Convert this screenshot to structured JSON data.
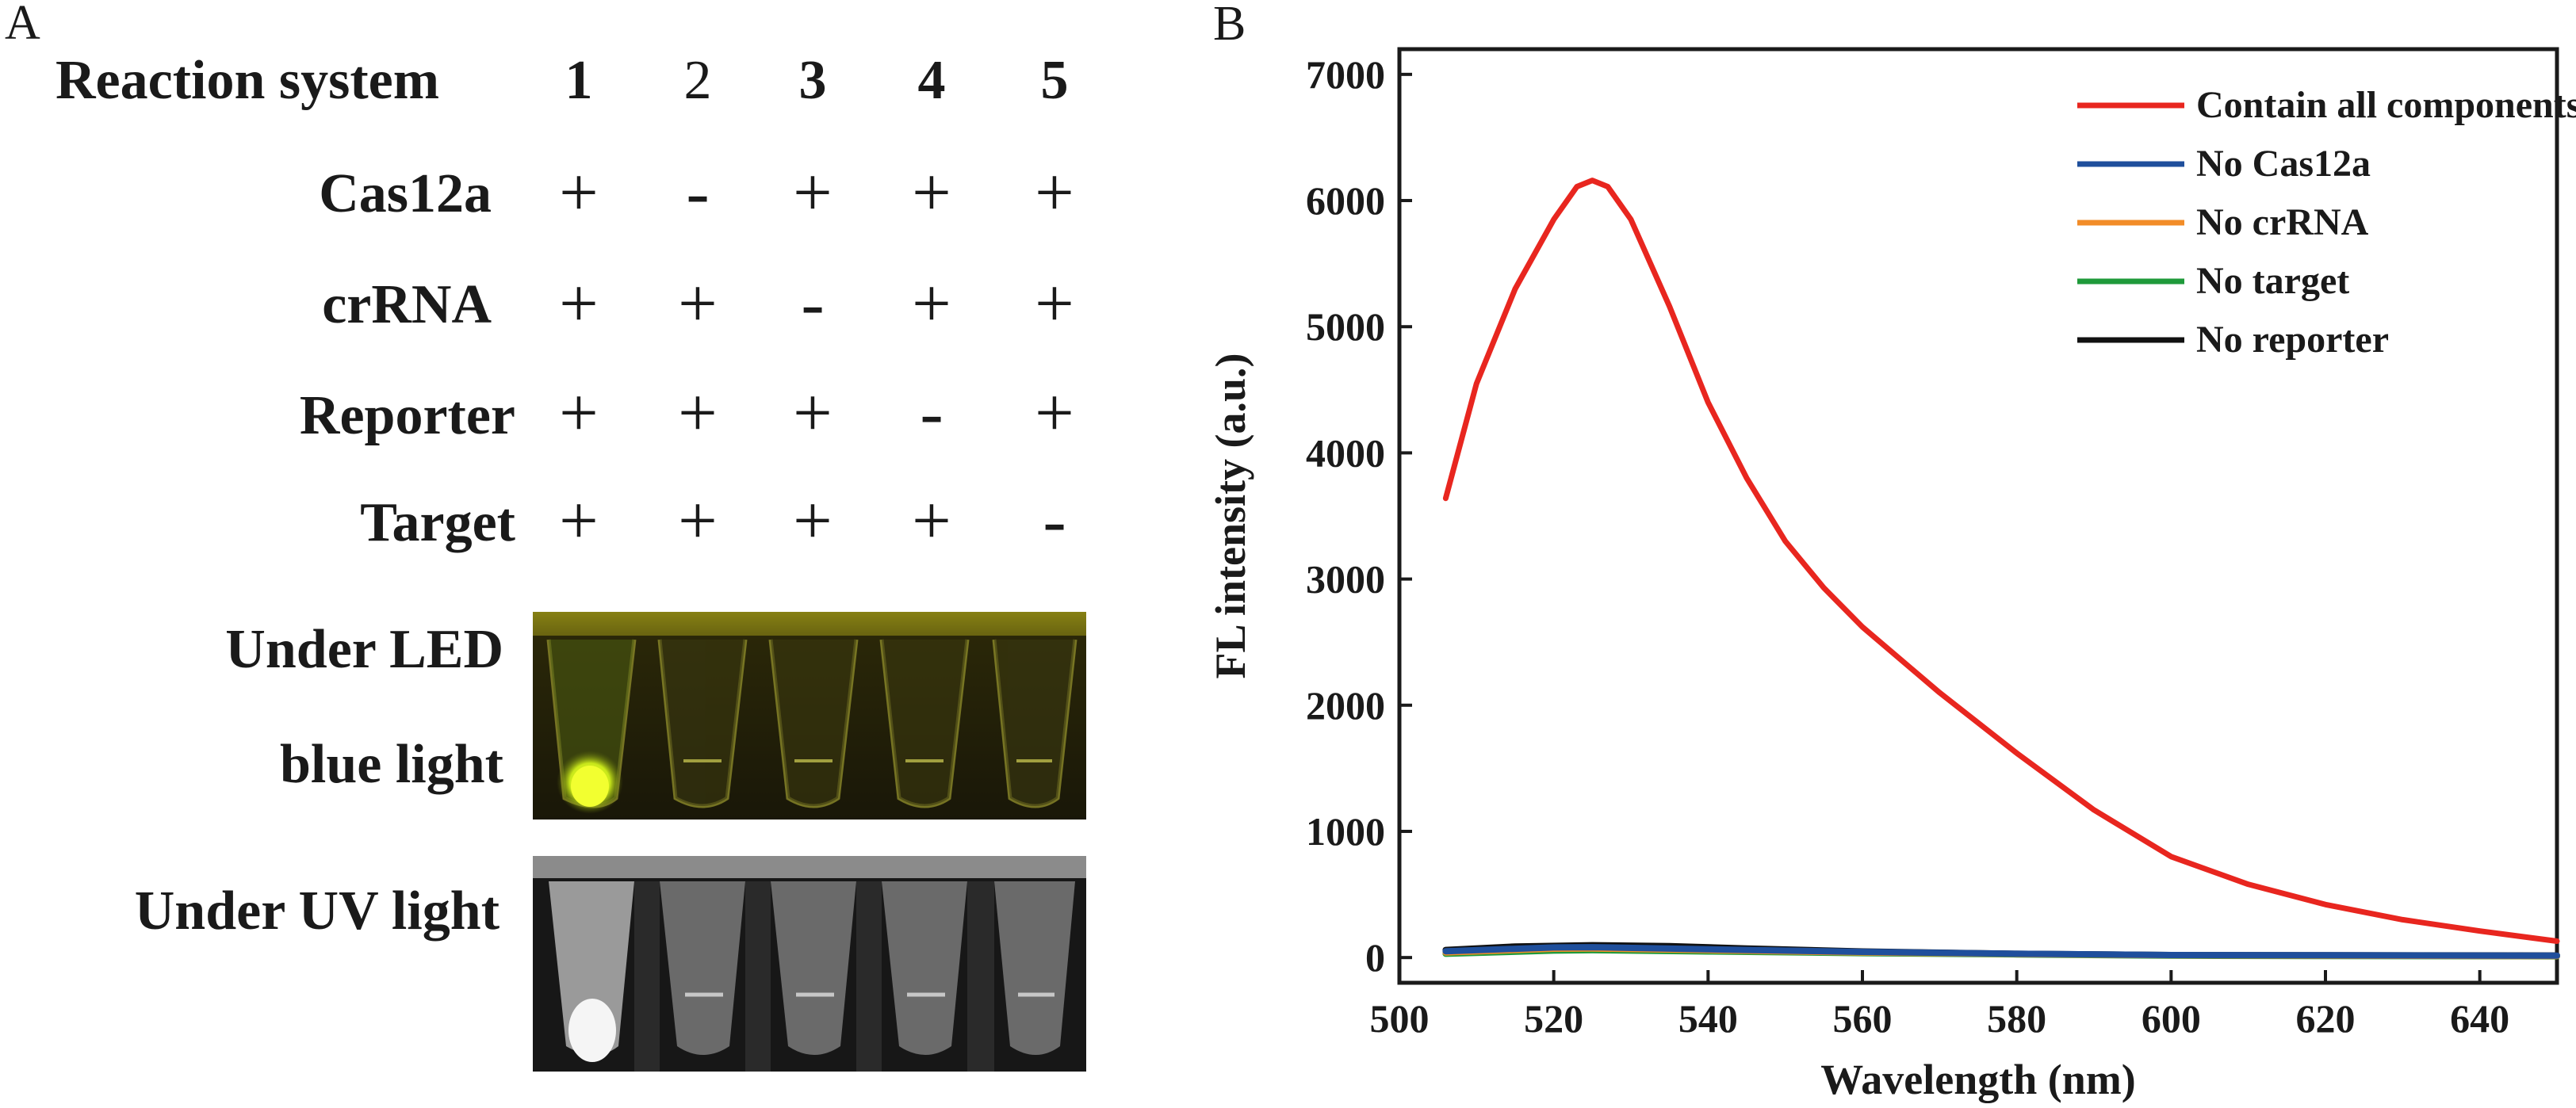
{
  "panel_a": {
    "letter": "A",
    "header_label": "Reaction system",
    "columns": [
      "1",
      "2",
      "3",
      "4",
      "5"
    ],
    "rows": [
      {
        "label": "Cas12a",
        "signs": [
          "+",
          "-",
          "+",
          "+",
          "+"
        ]
      },
      {
        "label": "crRNA",
        "signs": [
          "+",
          "+",
          "-",
          "+",
          "+"
        ]
      },
      {
        "label": "Reporter",
        "signs": [
          "+",
          "+",
          "+",
          "-",
          "+"
        ]
      },
      {
        "label": "Target",
        "signs": [
          "+",
          "+",
          "+",
          "+",
          "-"
        ]
      }
    ],
    "led_label_line1": "Under LED",
    "led_label_line2": "blue light",
    "uv_label": "Under UV light"
  },
  "chart_data": {
    "panel_letter": "B",
    "type": "line",
    "title": "",
    "xlabel": "Wavelength (nm)",
    "ylabel": "FL intensity (a.u.)",
    "xlim": [
      500,
      650
    ],
    "ylim": [
      -200,
      7200
    ],
    "xticks": [
      500,
      520,
      540,
      560,
      580,
      600,
      620,
      640
    ],
    "yticks": [
      0,
      1000,
      2000,
      3000,
      4000,
      5000,
      6000,
      7000
    ],
    "grid": false,
    "legend_position": "top-right",
    "series": [
      {
        "name": "Contain all components",
        "color": "#e8261f",
        "x": [
          506,
          510,
          515,
          520,
          523,
          525,
          527,
          530,
          535,
          540,
          545,
          550,
          555,
          560,
          570,
          580,
          590,
          600,
          610,
          620,
          630,
          640,
          650
        ],
        "y": [
          3640,
          4550,
          5300,
          5850,
          6110,
          6160,
          6110,
          5850,
          5160,
          4400,
          3800,
          3300,
          2930,
          2620,
          2100,
          1620,
          1170,
          800,
          580,
          420,
          300,
          210,
          130
        ]
      },
      {
        "name": "No Cas12a",
        "color": "#1f4f9c",
        "x": [
          506,
          520,
          525,
          540,
          560,
          580,
          600,
          620,
          650
        ],
        "y": [
          50,
          80,
          82,
          65,
          45,
          30,
          20,
          18,
          15
        ]
      },
      {
        "name": "No crRNA",
        "color": "#f28c28",
        "x": [
          506,
          520,
          525,
          540,
          560,
          580,
          600,
          620,
          650
        ],
        "y": [
          40,
          70,
          72,
          58,
          40,
          28,
          18,
          15,
          12
        ]
      },
      {
        "name": "No target",
        "color": "#1f9a3a",
        "x": [
          506,
          520,
          525,
          540,
          560,
          580,
          600,
          620,
          650
        ],
        "y": [
          30,
          55,
          58,
          48,
          35,
          25,
          15,
          12,
          10
        ]
      },
      {
        "name": "No reporter",
        "color": "#111111",
        "x": [
          506,
          515,
          525,
          535,
          545,
          560,
          580,
          600,
          620,
          650
        ],
        "y": [
          60,
          88,
          98,
          90,
          72,
          48,
          30,
          20,
          18,
          16
        ]
      }
    ]
  }
}
